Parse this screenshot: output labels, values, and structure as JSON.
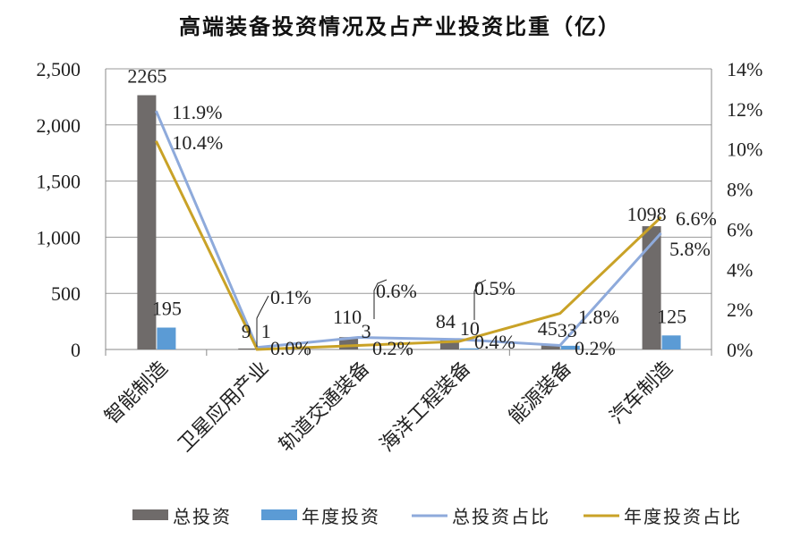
{
  "chart_data": {
    "type": "bar",
    "title": "高端装备投资情况及占产业投资比重（亿）",
    "categories": [
      "智能制造",
      "卫星应用产业",
      "轨道交通装备",
      "海洋工程装备",
      "能源装备",
      "汽车制造"
    ],
    "series": [
      {
        "name": "总投资",
        "type": "bar",
        "axis": "left",
        "color": "#6f6b6a",
        "values": [
          2265,
          9,
          110,
          84,
          45,
          1098
        ],
        "labels": [
          "2265",
          "9",
          "110",
          "84",
          "45",
          "1098"
        ]
      },
      {
        "name": "年度投资",
        "type": "bar",
        "axis": "left",
        "color": "#5b9bd5",
        "values": [
          195,
          1,
          3,
          10,
          33,
          125
        ],
        "labels": [
          "195",
          "1",
          "3",
          "10",
          "33",
          "125"
        ]
      },
      {
        "name": "总投资占比",
        "type": "line",
        "axis": "right",
        "color": "#8eaadb",
        "values": [
          11.9,
          0.1,
          0.6,
          0.5,
          0.2,
          5.8
        ],
        "labels": [
          "11.9%",
          "0.1%",
          "0.6%",
          "0.5%",
          "0.2%",
          "5.8%"
        ]
      },
      {
        "name": "年度投资占比",
        "type": "line",
        "axis": "right",
        "color": "#c9a227",
        "values": [
          10.4,
          0.0,
          0.2,
          0.4,
          1.8,
          6.6
        ],
        "labels": [
          "10.4%",
          "0.0%",
          "0.2%",
          "0.4%",
          "1.8%",
          "6.6%"
        ]
      }
    ],
    "ylim": [
      0,
      2500
    ],
    "yticks": [
      "0",
      "500",
      "1,000",
      "1,500",
      "2,000",
      "2,500"
    ],
    "y2lim": [
      0,
      14
    ],
    "y2ticks": [
      "0%",
      "2%",
      "4%",
      "6%",
      "8%",
      "10%",
      "12%",
      "14%"
    ],
    "grid": true,
    "legend": "bottom"
  }
}
